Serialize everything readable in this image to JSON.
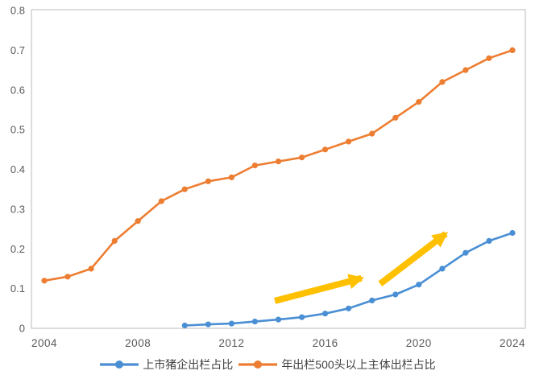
{
  "chart_data": {
    "type": "line",
    "xlim": [
      2004,
      2024
    ],
    "ylim": [
      0,
      0.8
    ],
    "grid": false,
    "legend_position": "bottom",
    "x_ticks": [
      2004,
      2008,
      2012,
      2016,
      2020,
      2024
    ],
    "y_ticks": [
      {
        "value": 0.0,
        "label": "0"
      },
      {
        "value": 0.1,
        "label": "0.1"
      },
      {
        "value": 0.2,
        "label": "0.2"
      },
      {
        "value": 0.3,
        "label": "0.3"
      },
      {
        "value": 0.4,
        "label": "0.4"
      },
      {
        "value": 0.5,
        "label": "0.5"
      },
      {
        "value": 0.6,
        "label": "0.6"
      },
      {
        "value": 0.7,
        "label": "0.7"
      },
      {
        "value": 0.8,
        "label": "0.8"
      }
    ],
    "series": [
      {
        "name": "上市猪企出栏占比",
        "color": "#4a8fd4",
        "points": [
          [
            2010,
            0.007
          ],
          [
            2011,
            0.01
          ],
          [
            2012,
            0.012
          ],
          [
            2013,
            0.017
          ],
          [
            2014,
            0.022
          ],
          [
            2015,
            0.028
          ],
          [
            2016,
            0.037
          ],
          [
            2017,
            0.05
          ],
          [
            2018,
            0.07
          ],
          [
            2019,
            0.085
          ],
          [
            2020,
            0.11
          ],
          [
            2021,
            0.15
          ],
          [
            2022,
            0.19
          ],
          [
            2023,
            0.22
          ],
          [
            2024,
            0.24
          ]
        ]
      },
      {
        "name": "年出栏500头以上主体出栏占比",
        "color": "#ed7d31",
        "points": [
          [
            2004,
            0.12
          ],
          [
            2005,
            0.13
          ],
          [
            2006,
            0.15
          ],
          [
            2007,
            0.22
          ],
          [
            2008,
            0.27
          ],
          [
            2009,
            0.32
          ],
          [
            2010,
            0.35
          ],
          [
            2011,
            0.37
          ],
          [
            2012,
            0.38
          ],
          [
            2013,
            0.41
          ],
          [
            2014,
            0.42
          ],
          [
            2015,
            0.43
          ],
          [
            2016,
            0.45
          ],
          [
            2017,
            0.47
          ],
          [
            2018,
            0.49
          ],
          [
            2019,
            0.53
          ],
          [
            2020,
            0.57
          ],
          [
            2021,
            0.62
          ],
          [
            2022,
            0.65
          ],
          [
            2023,
            0.68
          ],
          [
            2024,
            0.7
          ]
        ]
      }
    ],
    "annotations": {
      "arrow_color": "#ffc000",
      "arrows": [
        {
          "from": [
            2013.85,
            0.069
          ],
          "to": [
            2017.55,
            0.126
          ]
        },
        {
          "from": [
            2018.35,
            0.112
          ],
          "to": [
            2021.15,
            0.238
          ]
        }
      ]
    },
    "colors": {
      "axis_text": "#595959",
      "plot_border": "#c6c6c6",
      "legend_text": "#404040"
    }
  }
}
